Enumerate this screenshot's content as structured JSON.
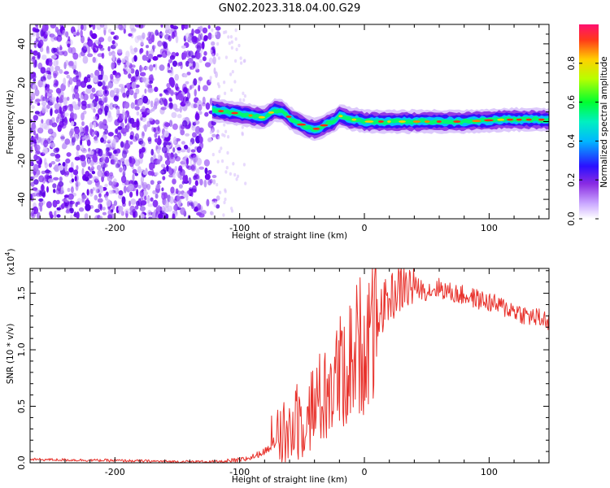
{
  "title": "GN02.2023.318.04.00.G29",
  "chart_data": [
    {
      "type": "heatmap",
      "xlabel": "Height of straight line (km)",
      "ylabel": "Frequency (Hz)",
      "xlim": [
        -268,
        148
      ],
      "ylim": [
        -50,
        50
      ],
      "xticks": [
        -200,
        -100,
        0,
        100
      ],
      "yticks": [
        40,
        20,
        0,
        -20,
        -40
      ],
      "colorbar": {
        "label": "Normalized spectral amplitude",
        "range": [
          0.0,
          1.0
        ],
        "ticks": [
          "0.0",
          "0.2",
          "0.4",
          "0.6",
          "0.8"
        ]
      },
      "noise_region_x": [
        -268,
        -125
      ],
      "signal_track": {
        "x": [
          -122,
          -110,
          -100,
          -90,
          -80,
          -72,
          -65,
          -58,
          -52,
          -46,
          -40,
          -35,
          -30,
          -25,
          -20,
          -15,
          -10,
          -5,
          0,
          20,
          50,
          80,
          110,
          148
        ],
        "y": [
          6,
          5,
          4,
          3,
          2,
          6,
          5,
          1,
          -1,
          -3,
          -4,
          -3,
          -1,
          0,
          3,
          2,
          1,
          1,
          0,
          0,
          0,
          0,
          1,
          1
        ]
      }
    },
    {
      "type": "line",
      "xlabel": "Height of straight line (km)",
      "ylabel": "SNR (10 * v/v)",
      "yscale_label": "(x10",
      "yscale_exp": "4",
      "xlim": [
        -268,
        148
      ],
      "ylim": [
        0,
        1.72
      ],
      "xticks": [
        -200,
        -100,
        0,
        100
      ],
      "yticks": [
        "0.0",
        "0.5",
        "1.0",
        "1.5"
      ],
      "color": "#e8322c",
      "series": [
        {
          "x": [
            -268,
            -200,
            -150,
            -110,
            -100,
            -90,
            -80,
            -70,
            -60,
            -50,
            -40,
            -30,
            -20,
            -10,
            0,
            10,
            20,
            30,
            40,
            50,
            60,
            70,
            80,
            90,
            100,
            110,
            120,
            130,
            140,
            148
          ],
          "y": [
            0.03,
            0.02,
            0.01,
            0.01,
            0.02,
            0.05,
            0.1,
            0.18,
            0.28,
            0.4,
            0.5,
            0.62,
            0.78,
            0.92,
            1.1,
            1.3,
            1.45,
            1.55,
            1.56,
            1.52,
            1.55,
            1.5,
            1.48,
            1.45,
            1.42,
            1.38,
            1.35,
            1.3,
            1.28,
            1.25
          ]
        }
      ]
    }
  ]
}
